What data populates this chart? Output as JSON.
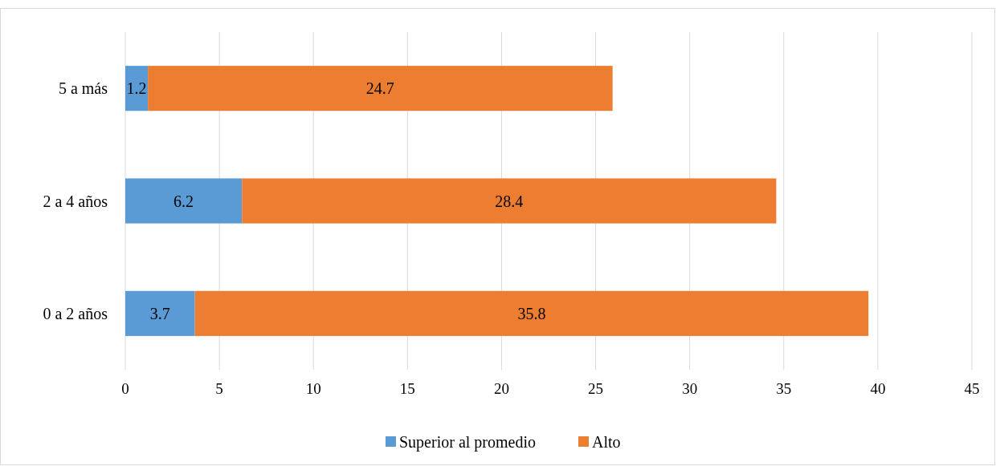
{
  "chart_data": {
    "type": "bar",
    "orientation": "horizontal",
    "stacked": true,
    "categories": [
      "5 a más",
      "2 a 4 años",
      "0 a 2 años"
    ],
    "series": [
      {
        "name": "Superior al promedio",
        "color": "#5b9bd5",
        "values": [
          1.2,
          6.2,
          3.7
        ]
      },
      {
        "name": "Alto",
        "color": "#ed7d31",
        "values": [
          24.7,
          28.4,
          35.8
        ]
      }
    ],
    "xlim": [
      0,
      45
    ],
    "xticks": [
      0,
      5,
      10,
      15,
      20,
      25,
      30,
      35,
      40,
      45
    ],
    "grid": "x",
    "legend": "bottom",
    "data_labels": true
  }
}
